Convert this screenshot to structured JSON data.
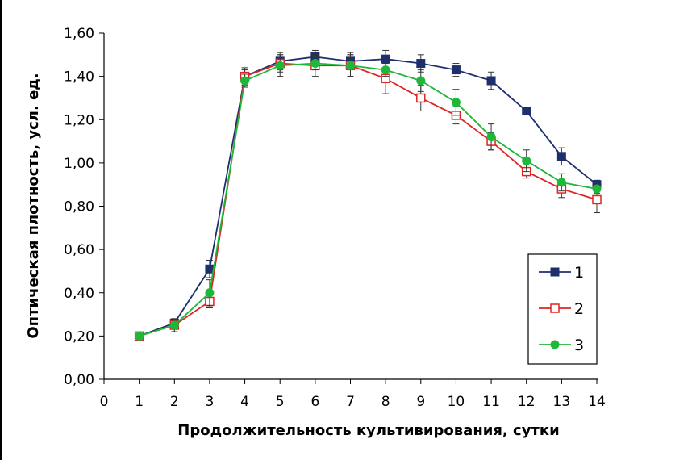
{
  "chart_data": {
    "type": "line",
    "title": "",
    "xlabel": "Продолжительность культивирования, сутки",
    "ylabel": "Оптическая плотность, усл. ед.",
    "xlim": [
      0,
      14
    ],
    "ylim": [
      0,
      1.6
    ],
    "x_ticks": [
      "0",
      "1",
      "2",
      "3",
      "4",
      "5",
      "6",
      "7",
      "8",
      "9",
      "10",
      "11",
      "12",
      "13",
      "14"
    ],
    "y_ticks": [
      "0,00",
      "0,20",
      "0,40",
      "0,60",
      "0,80",
      "1,00",
      "1,20",
      "1,40",
      "1,60"
    ],
    "grid": false,
    "legend_position": "bottom-right",
    "series": [
      {
        "name": "1",
        "color": "#1f2f6e",
        "marker": "filled-square",
        "x": [
          1,
          2,
          3,
          4,
          5,
          6,
          7,
          8,
          9,
          10,
          11,
          12,
          13,
          14
        ],
        "y": [
          0.2,
          0.26,
          0.51,
          1.4,
          1.47,
          1.49,
          1.47,
          1.48,
          1.46,
          1.43,
          1.38,
          1.24,
          1.03,
          0.9
        ],
        "err": [
          0.01,
          0.02,
          0.04,
          0.04,
          0.04,
          0.03,
          0.04,
          0.04,
          0.04,
          0.03,
          0.04,
          0.01,
          0.04,
          0.02
        ]
      },
      {
        "name": "2",
        "color": "#e02424",
        "marker": "open-square",
        "x": [
          1,
          2,
          3,
          4,
          5,
          6,
          7,
          8,
          9,
          10,
          11,
          12,
          13,
          14
        ],
        "y": [
          0.2,
          0.25,
          0.36,
          1.4,
          1.46,
          1.45,
          1.45,
          1.39,
          1.3,
          1.22,
          1.1,
          0.96,
          0.88,
          0.83
        ],
        "err": [
          0.01,
          0.03,
          0.03,
          0.03,
          0.04,
          0.05,
          0.05,
          0.07,
          0.06,
          0.04,
          0.04,
          0.03,
          0.04,
          0.06
        ]
      },
      {
        "name": "3",
        "color": "#1db83a",
        "marker": "filled-circle",
        "x": [
          1,
          2,
          3,
          4,
          5,
          6,
          7,
          8,
          9,
          10,
          11,
          12,
          13,
          14
        ],
        "y": [
          0.2,
          0.25,
          0.4,
          1.38,
          1.45,
          1.46,
          1.45,
          1.43,
          1.38,
          1.28,
          1.12,
          1.01,
          0.91,
          0.88
        ],
        "err": [
          0.01,
          0.03,
          0.06,
          0.03,
          0.05,
          0.03,
          0.05,
          0.03,
          0.05,
          0.06,
          0.06,
          0.05,
          0.04,
          0.02
        ]
      }
    ]
  }
}
